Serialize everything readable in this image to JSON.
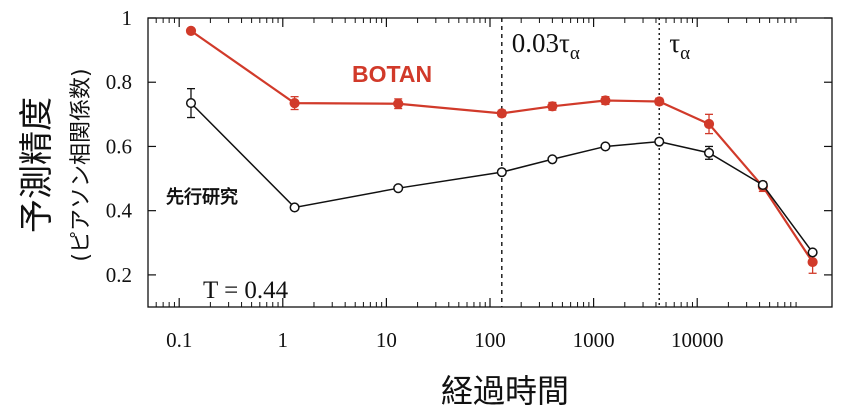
{
  "chart_data": {
    "type": "line",
    "xlabel": "経過時間",
    "ylabel": "予測精度",
    "ylabel_sub": "(ピアソン相関係数)",
    "x_scale": "log",
    "xlim": [
      0.05,
      200000
    ],
    "ylim": [
      0.1,
      1.0
    ],
    "x_ticks": [
      {
        "value": 0.1,
        "label": "0.1"
      },
      {
        "value": 1,
        "label": "1"
      },
      {
        "value": 10,
        "label": "10"
      },
      {
        "value": 100,
        "label": "100"
      },
      {
        "value": 1000,
        "label": "1000"
      },
      {
        "value": 10000,
        "label": "10000"
      }
    ],
    "y_ticks": [
      {
        "value": 0.2,
        "label": "0.2"
      },
      {
        "value": 0.4,
        "label": "0.4"
      },
      {
        "value": 0.6,
        "label": "0.6"
      },
      {
        "value": 0.8,
        "label": "0.8"
      },
      {
        "value": 1.0,
        "label": "1"
      }
    ],
    "reference_lines": [
      {
        "x": 130,
        "label_main": "0.03τ",
        "label_sub": "α"
      },
      {
        "x": 4300,
        "label_main": "τ",
        "label_sub": "α"
      }
    ],
    "annotation": {
      "label": "T = 0.44"
    },
    "grid": false,
    "series": [
      {
        "name": "BOTAN",
        "color": "#d13a2a",
        "marker": "filled-circle",
        "points": [
          {
            "x": 0.13,
            "y": 0.96,
            "err": 0.0
          },
          {
            "x": 1.3,
            "y": 0.735,
            "err": 0.02
          },
          {
            "x": 13,
            "y": 0.733,
            "err": 0.015
          },
          {
            "x": 130,
            "y": 0.703,
            "err": 0.01
          },
          {
            "x": 400,
            "y": 0.725,
            "err": 0.012
          },
          {
            "x": 1300,
            "y": 0.743,
            "err": 0.012
          },
          {
            "x": 4300,
            "y": 0.74,
            "err": 0.01
          },
          {
            "x": 13000,
            "y": 0.67,
            "err": 0.03
          },
          {
            "x": 43000,
            "y": 0.475,
            "err": 0.015
          },
          {
            "x": 130000,
            "y": 0.24,
            "err": 0.035
          }
        ]
      },
      {
        "name": "先行研究",
        "color": "#111111",
        "marker": "open-circle",
        "points": [
          {
            "x": 0.13,
            "y": 0.735,
            "err": 0.045
          },
          {
            "x": 1.3,
            "y": 0.41,
            "err": 0.0
          },
          {
            "x": 13,
            "y": 0.47,
            "err": 0.0
          },
          {
            "x": 130,
            "y": 0.52,
            "err": 0.0
          },
          {
            "x": 400,
            "y": 0.56,
            "err": 0.0
          },
          {
            "x": 1300,
            "y": 0.6,
            "err": 0.0
          },
          {
            "x": 4300,
            "y": 0.615,
            "err": 0.0
          },
          {
            "x": 13000,
            "y": 0.58,
            "err": 0.02
          },
          {
            "x": 43000,
            "y": 0.48,
            "err": 0.0
          },
          {
            "x": 130000,
            "y": 0.27,
            "err": 0.0
          }
        ]
      }
    ]
  }
}
